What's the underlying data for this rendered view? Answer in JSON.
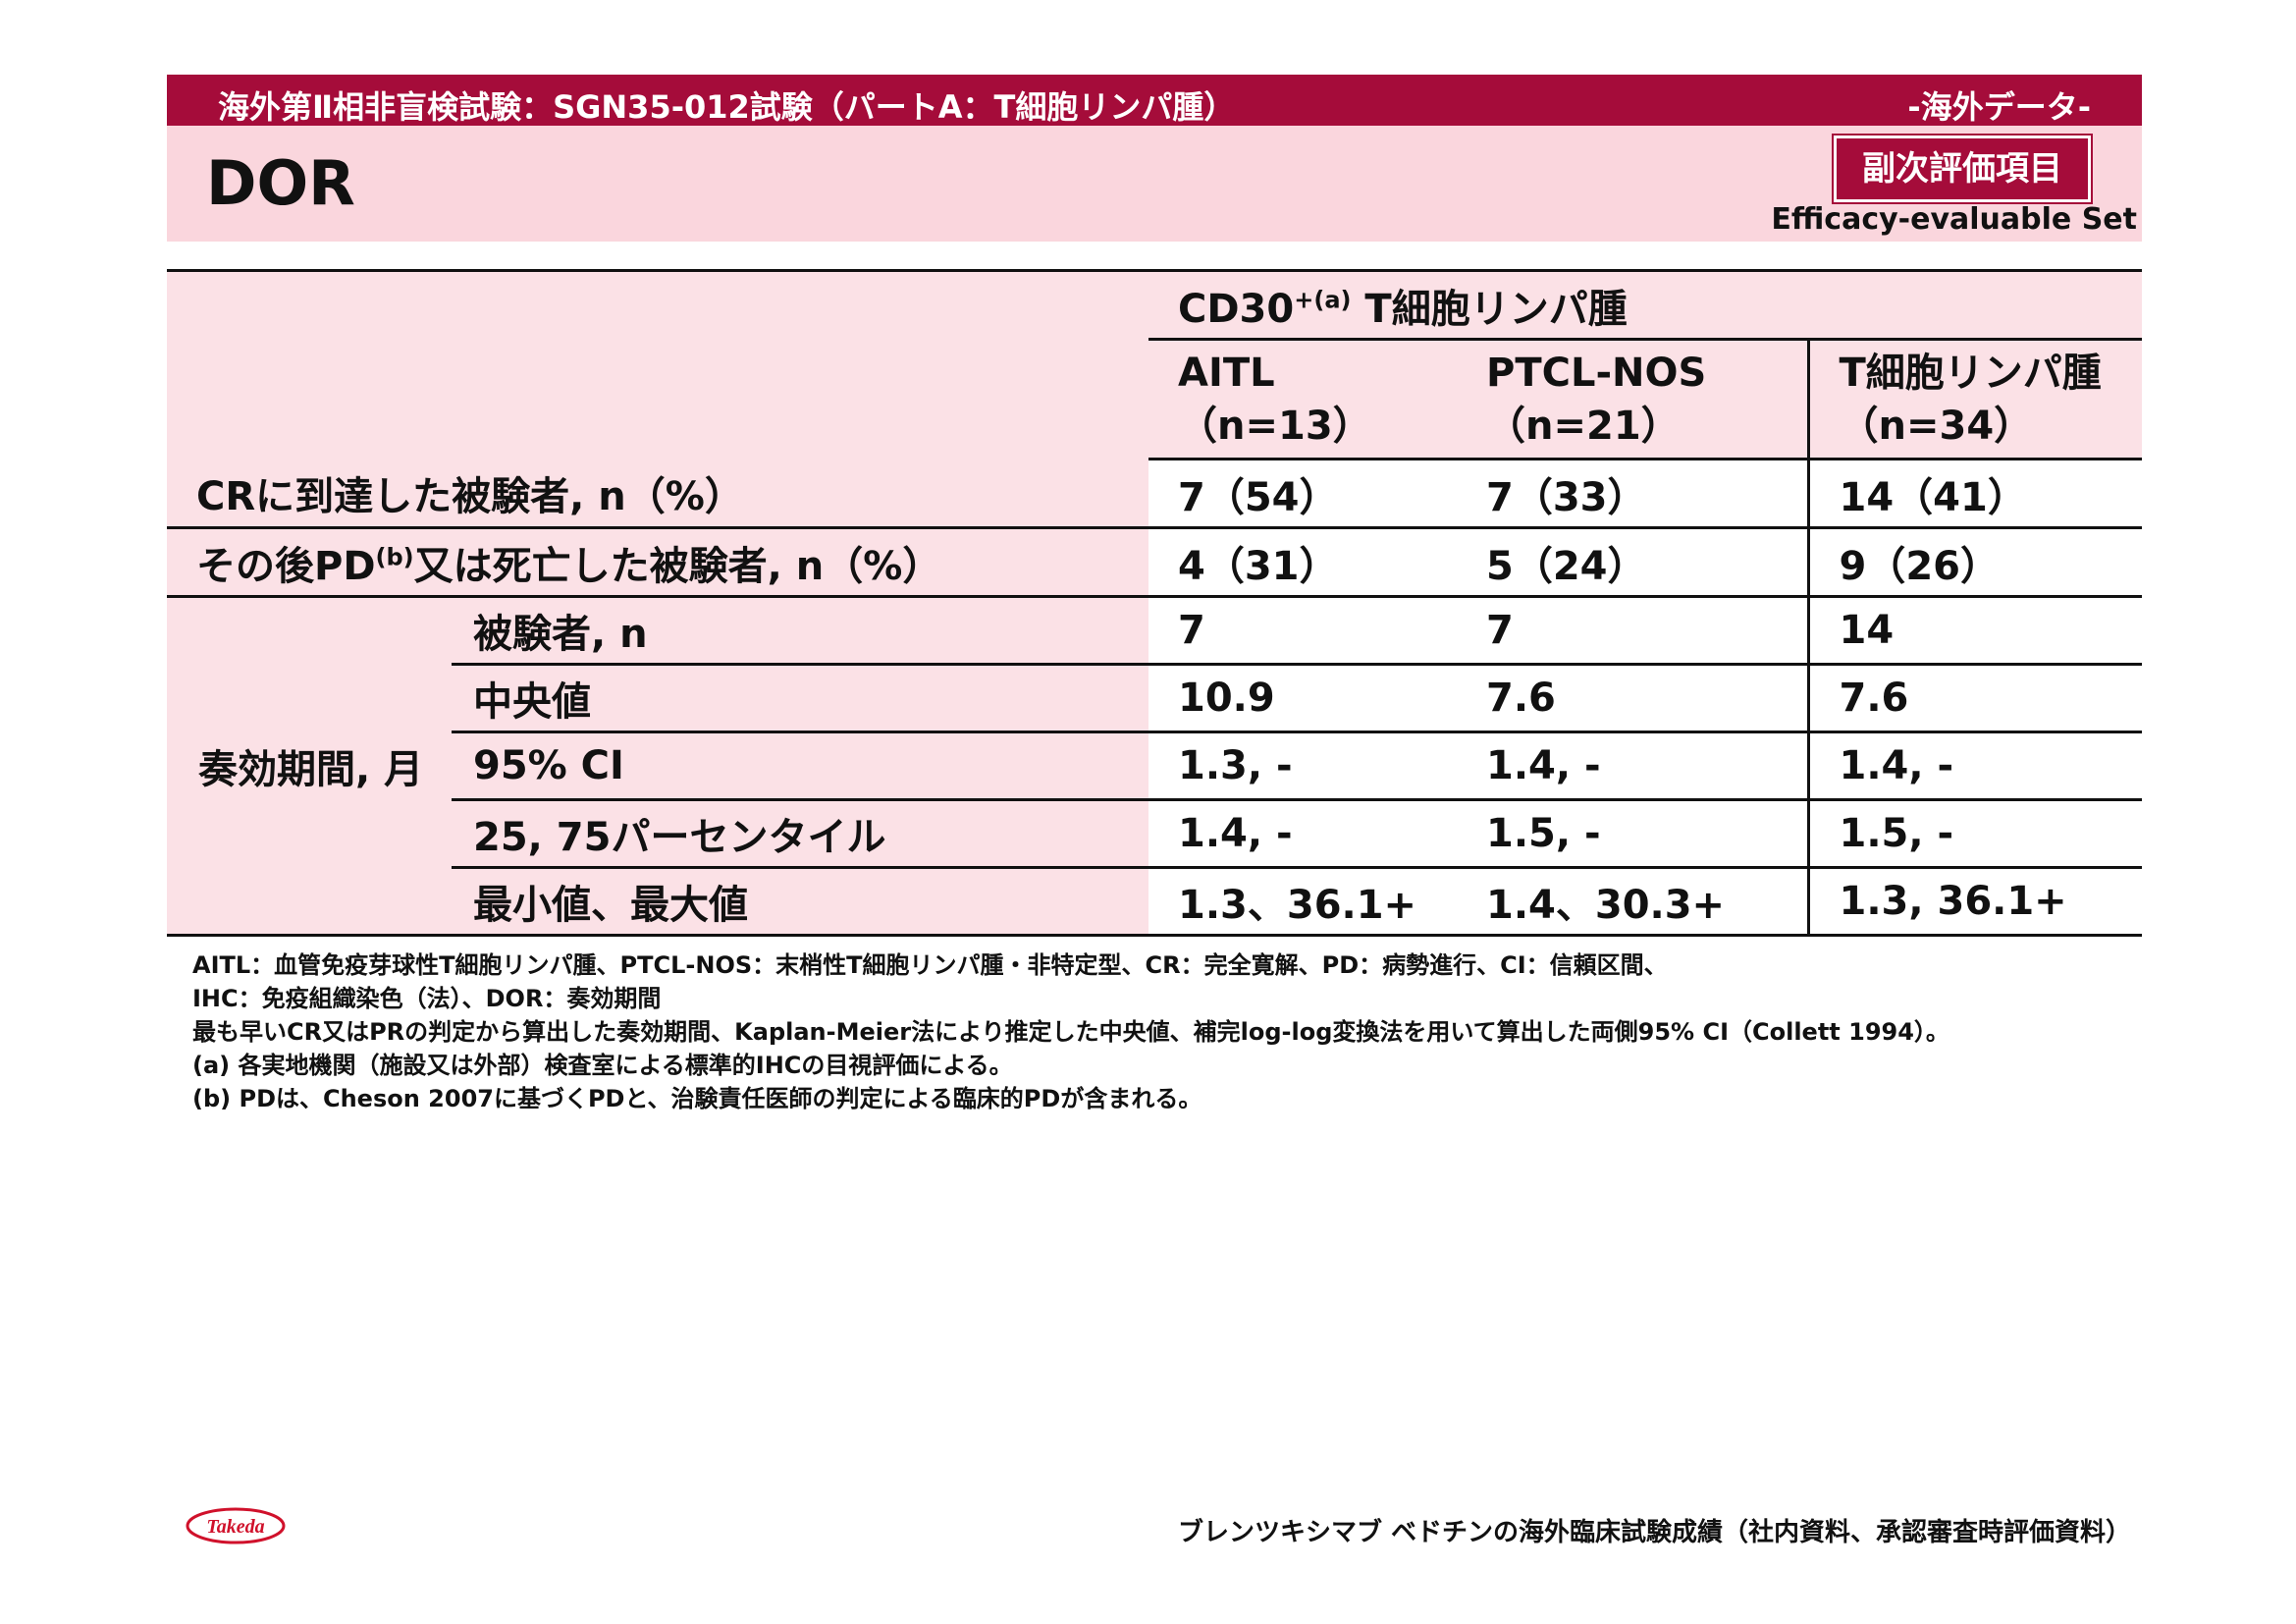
{
  "header": {
    "study": "海外第Ⅱ相非盲検試験：SGN35-012試験（パートA：T細胞リンパ腫）",
    "tag": "-海外データ-"
  },
  "title": "DOR",
  "badge": "副次評価項目",
  "set_label": "Efficacy-evaluable Set",
  "table": {
    "group_header": "CD30",
    "group_header_sup": "+(a)",
    "group_header_rest": "T細胞リンパ腫",
    "columns": [
      {
        "name": "AITL",
        "n": "（n=13）"
      },
      {
        "name": "PTCL-NOS",
        "n": "（n=21）"
      },
      {
        "name": "T細胞リンパ腫",
        "n": "（n=34）"
      }
    ],
    "rows": [
      {
        "label": "CRに到達した被験者, n（%）",
        "values": [
          "7（54）",
          "7（33）",
          "14（41）"
        ]
      },
      {
        "label_a": "その後PD",
        "label_sup": "(b)",
        "label_b": "又は死亡した被験者, n（%）",
        "values": [
          "4（31）",
          "5（24）",
          "9（26）"
        ]
      }
    ],
    "dor_group_label": "奏効期間, 月",
    "dor_rows": [
      {
        "label": "被験者, n",
        "values": [
          "7",
          "7",
          "14"
        ]
      },
      {
        "label": "中央値",
        "values": [
          "10.9",
          "7.6",
          "7.6"
        ]
      },
      {
        "label": "95% CI",
        "values": [
          "1.3, -",
          "1.4, -",
          "1.4, -"
        ]
      },
      {
        "label": "25, 75パーセンタイル",
        "values": [
          "1.4, -",
          "1.5, -",
          "1.5, -"
        ]
      },
      {
        "label": "最小値、最大値",
        "values": [
          "1.3、36.1+",
          "1.4、30.3+",
          "1.3, 36.1+"
        ]
      }
    ]
  },
  "notes": [
    "AITL：血管免疫芽球性T細胞リンパ腫、PTCL-NOS：末梢性T細胞リンパ腫・非特定型、CR：完全寛解、PD：病勢進行、CI：信頼区間、",
    "IHC：免疫組織染色（法）、DOR：奏効期間",
    "最も早いCR又はPRの判定から算出した奏効期間、Kaplan-Meier法により推定した中央値、補完log-log変換法を用いて算出した両側95% CI（Collett 1994）。",
    "(a) 各実地機関（施設又は外部）検査室による標準的IHCの目視評価による。",
    "(b) PDは、Cheson 2007に基づくPDと、治験責任医師の判定による臨床的PDが含まれる。"
  ],
  "logo_text": "Takeda",
  "footer": "ブレンツキシマブ ベドチンの海外臨床試験成績（社内資料、承認審査時評価資料）",
  "colors": {
    "brand": "#a50c3a",
    "band": "#fad6dd",
    "cell": "#fbe1e6"
  }
}
